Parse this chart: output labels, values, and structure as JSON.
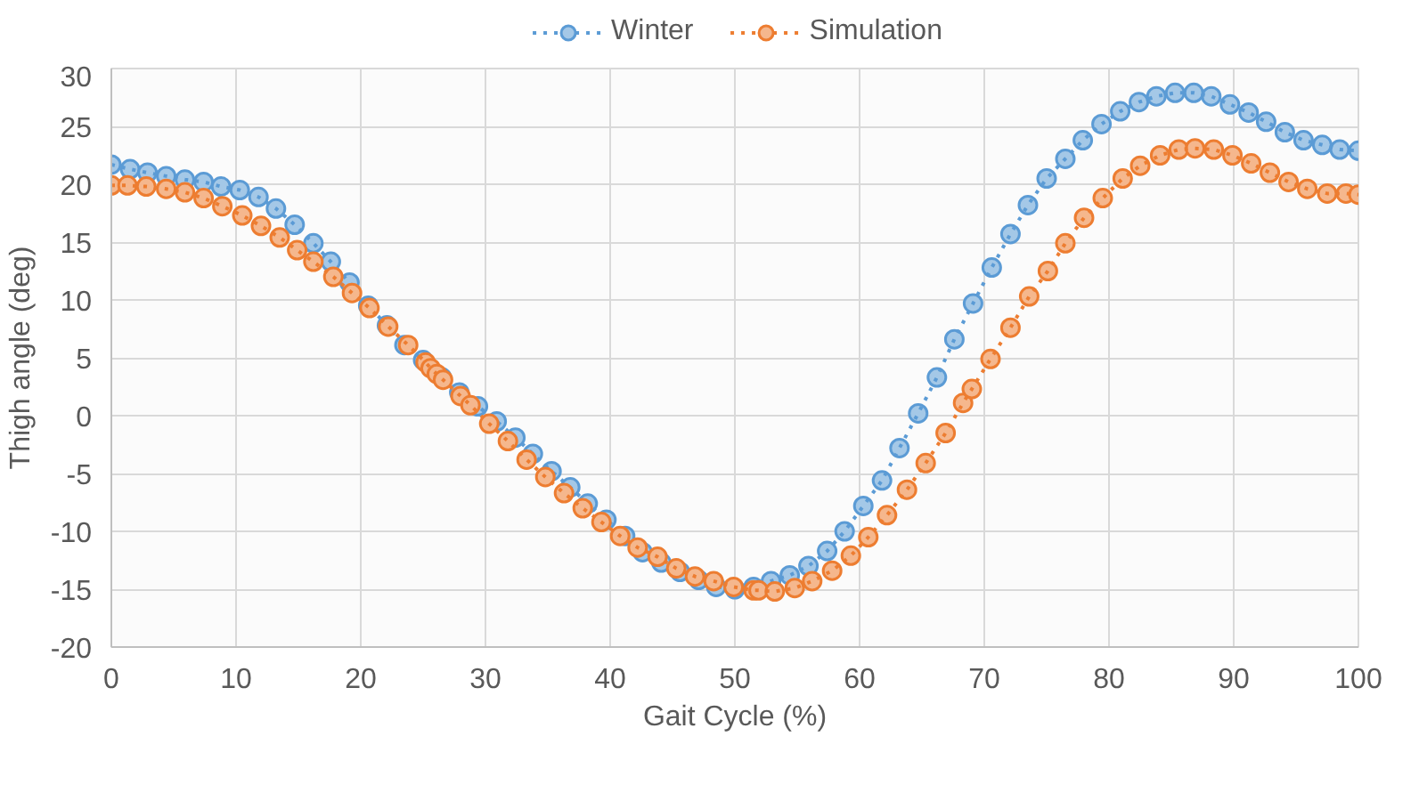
{
  "chart_data": {
    "type": "line",
    "xlabel": "Gait Cycle (%)",
    "ylabel": "Thigh angle (deg)",
    "xlim": [
      0,
      100
    ],
    "xticks": [
      0,
      10,
      20,
      30,
      40,
      50,
      60,
      70,
      80,
      90,
      100
    ],
    "ylim": [
      -20,
      30
    ],
    "yticks": [
      -20,
      -15,
      -10,
      -5,
      0,
      5,
      10,
      15,
      20,
      25,
      30
    ],
    "grid": true,
    "legend": "top",
    "marker": "circle",
    "line_style": "dotted",
    "series": [
      {
        "name": "Winter",
        "color": "#5b9bd5",
        "x": [
          0,
          1.5,
          2.9,
          4.4,
          5.9,
          7.4,
          8.8,
          10.3,
          11.8,
          13.2,
          14.7,
          16.2,
          17.6,
          19.1,
          20.6,
          22.1,
          23.5,
          25.0,
          26.5,
          27.9,
          29.4,
          30.9,
          32.4,
          33.8,
          35.3,
          36.8,
          38.2,
          39.7,
          41.2,
          42.6,
          44.1,
          45.6,
          47.1,
          48.5,
          50.0,
          51.5,
          52.9,
          54.4,
          55.9,
          57.4,
          58.8,
          60.3,
          61.8,
          63.2,
          64.7,
          66.2,
          67.6,
          69.1,
          70.6,
          72.1,
          73.5,
          75.0,
          76.5,
          77.9,
          79.4,
          80.9,
          82.4,
          83.8,
          85.3,
          86.8,
          88.2,
          89.7,
          91.2,
          92.6,
          94.1,
          95.6,
          97.1,
          98.5,
          100
        ],
        "values": [
          21.7,
          21.3,
          21.0,
          20.7,
          20.4,
          20.2,
          19.8,
          19.5,
          18.9,
          17.9,
          16.5,
          14.9,
          13.3,
          11.5,
          9.5,
          7.8,
          6.1,
          4.8,
          3.3,
          2.0,
          0.8,
          -0.5,
          -1.9,
          -3.3,
          -4.8,
          -6.2,
          -7.6,
          -9.0,
          -10.4,
          -11.8,
          -12.7,
          -13.5,
          -14.2,
          -14.8,
          -15.0,
          -14.8,
          -14.3,
          -13.8,
          -13.0,
          -11.7,
          -10.0,
          -7.8,
          -5.6,
          -2.8,
          0.2,
          3.3,
          6.6,
          9.7,
          12.8,
          15.7,
          18.2,
          20.5,
          22.2,
          23.8,
          25.2,
          26.3,
          27.1,
          27.6,
          27.9,
          27.9,
          27.6,
          26.9,
          26.2,
          25.4,
          24.5,
          23.8,
          23.4,
          23.0,
          22.9
        ]
      },
      {
        "name": "Simulation",
        "color": "#ed7d31",
        "x": [
          0,
          1.3,
          2.8,
          4.4,
          5.9,
          7.4,
          8.9,
          10.5,
          12.0,
          13.5,
          14.9,
          16.2,
          17.8,
          19.3,
          20.7,
          22.2,
          23.8,
          25.2,
          25.6,
          26.1,
          26.6,
          28.0,
          28.8,
          30.3,
          31.8,
          33.3,
          34.8,
          36.3,
          37.8,
          39.3,
          40.8,
          42.2,
          43.8,
          45.3,
          46.8,
          48.3,
          49.9,
          51.5,
          51.9,
          53.2,
          54.8,
          56.2,
          57.8,
          59.3,
          60.7,
          62.2,
          63.8,
          65.3,
          66.9,
          68.3,
          69.0,
          70.5,
          72.1,
          73.6,
          75.1,
          76.5,
          78.0,
          79.5,
          81.1,
          82.5,
          84.1,
          85.6,
          86.9,
          88.4,
          89.9,
          91.4,
          92.9,
          94.4,
          95.9,
          97.5,
          99.0,
          100
        ],
        "values": [
          19.9,
          19.9,
          19.8,
          19.6,
          19.3,
          18.8,
          18.1,
          17.3,
          16.4,
          15.4,
          14.3,
          13.3,
          12.0,
          10.6,
          9.3,
          7.7,
          6.1,
          4.6,
          4.1,
          3.6,
          3.1,
          1.7,
          0.9,
          -0.7,
          -2.2,
          -3.8,
          -5.3,
          -6.7,
          -8.0,
          -9.2,
          -10.4,
          -11.4,
          -12.2,
          -13.2,
          -13.9,
          -14.3,
          -14.8,
          -15.1,
          -15.1,
          -15.2,
          -14.9,
          -14.3,
          -13.4,
          -12.1,
          -10.5,
          -8.6,
          -6.4,
          -4.1,
          -1.5,
          1.1,
          2.3,
          4.9,
          7.6,
          10.3,
          12.5,
          14.9,
          17.1,
          18.8,
          20.5,
          21.6,
          22.5,
          23.0,
          23.1,
          23.0,
          22.5,
          21.8,
          21.0,
          20.2,
          19.6,
          19.2,
          19.2,
          19.1
        ]
      }
    ]
  }
}
